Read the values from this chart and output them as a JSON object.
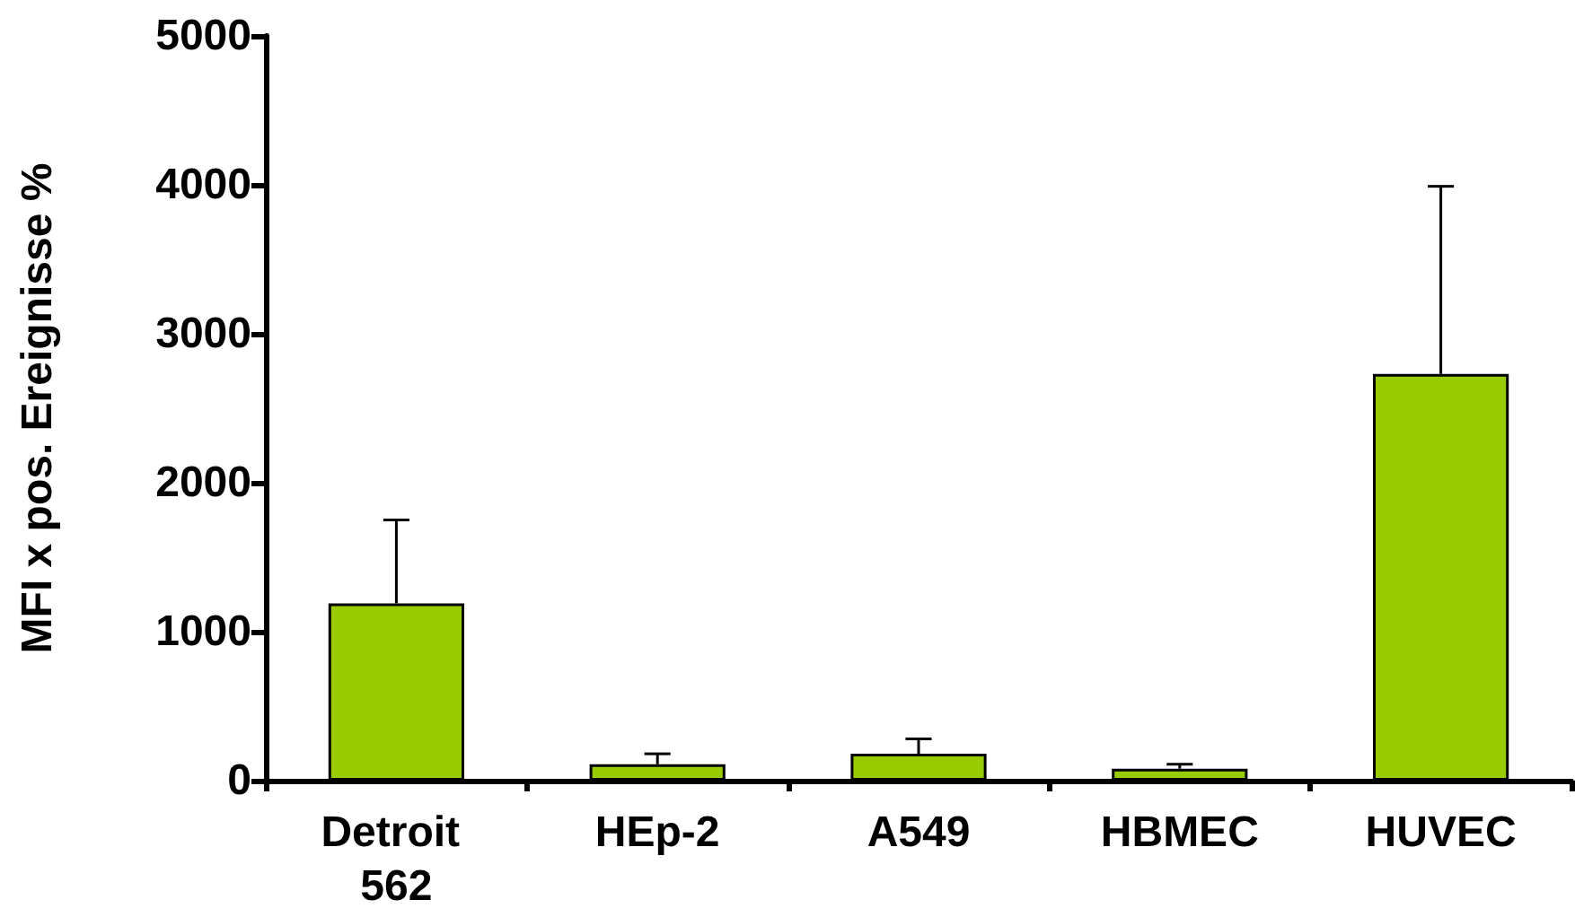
{
  "chart_data": {
    "type": "bar",
    "ylabel": "MFI x pos. Ereignisse %",
    "categories": [
      "Detroit 562",
      "HEp-2",
      "A549",
      "HBMEC",
      "HUVEC"
    ],
    "values": [
      1190,
      110,
      180,
      80,
      2730
    ],
    "errors": [
      [
        1190,
        1750
      ],
      [
        110,
        180
      ],
      [
        180,
        280
      ],
      [
        80,
        110
      ],
      [
        2730,
        3990
      ]
    ],
    "color": "#99cc00",
    "ylim": [
      0,
      5000
    ],
    "yticks": [
      0,
      1000,
      2000,
      3000,
      4000,
      5000
    ],
    "grid": false
  }
}
